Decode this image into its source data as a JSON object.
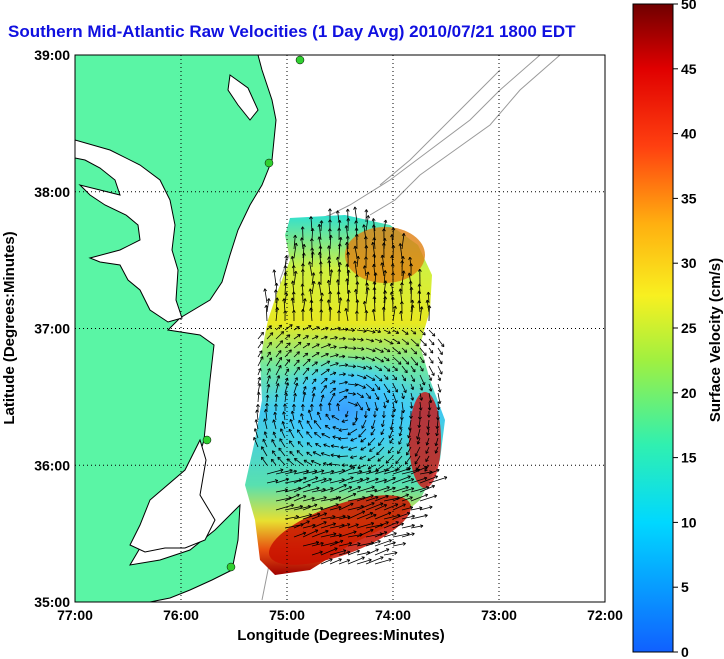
{
  "title": "Southern Mid-Atlantic Raw Velocities (1 Day Avg) 2010/07/21 1800 EDT",
  "map": {
    "x_axis": {
      "label": "Longitude (Degrees:Minutes)",
      "ticks": [
        "77:00",
        "76:00",
        "75:00",
        "74:00",
        "73:00",
        "72:00"
      ],
      "range_deg_west": [
        77,
        72
      ]
    },
    "y_axis": {
      "label": "Latitude (Degrees:Minutes)",
      "ticks": [
        "39:00",
        "38:00",
        "37:00",
        "36:00",
        "35:00"
      ],
      "range_deg_north": [
        35,
        39
      ]
    },
    "grid": "dotted",
    "land_color": "#5af5a5",
    "coast_color": "#000000",
    "bathymetry_color": "#9a9a9a",
    "arrow_color": "#000000"
  },
  "colorbar": {
    "label": "Surface Velocity (cm/s)",
    "units": "cm/s",
    "range": [
      0,
      50
    ],
    "ticks": [
      "0",
      "5",
      "10",
      "15",
      "20",
      "25",
      "30",
      "35",
      "40",
      "45",
      "50"
    ],
    "colormap": "jet"
  },
  "velocity_field": {
    "region": "offshore of Virginia and North Carolina",
    "max_cm_s": 50,
    "high_speed_areas": [
      "northeast of domain near 37:15 N 74:15 W",
      "southeast edge near 35:30 N 74:30 W"
    ],
    "low_speed_areas": [
      "central eddy near 36:20 N 74:30 W"
    ]
  }
}
